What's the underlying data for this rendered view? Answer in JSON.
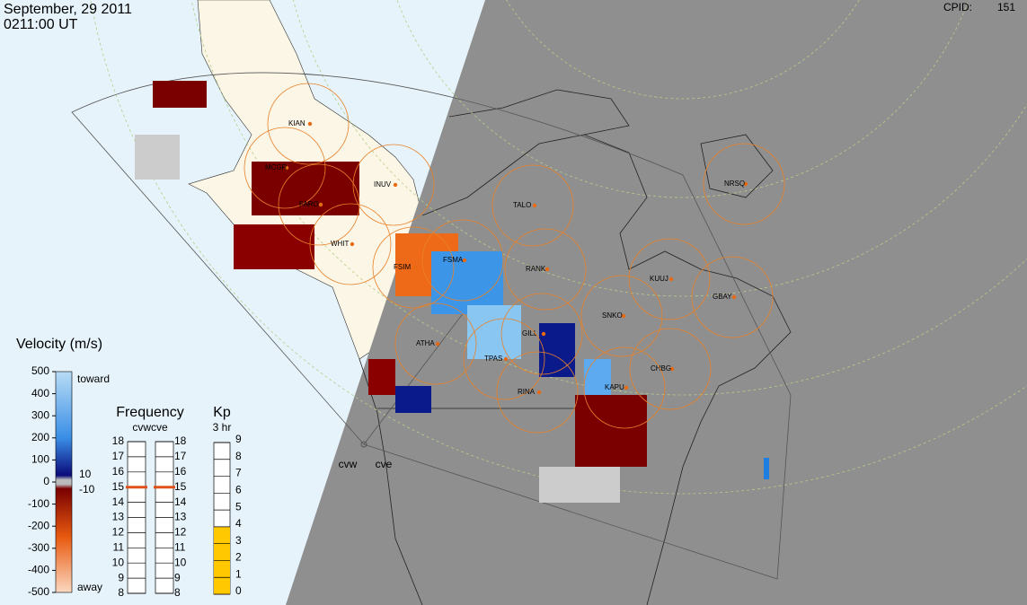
{
  "header": {
    "date": "September, 29 2011",
    "time": "0211:00 UT",
    "cpid_label": "CPID:",
    "cpid": "151"
  },
  "stations": [
    "KIAN",
    "MCGR",
    "INUV",
    "FARO",
    "WHIT",
    "FSIM",
    "FSMA",
    "RANK",
    "TALO",
    "NRSQ",
    "KUUJ",
    "GBAY",
    "SNKO",
    "GILL",
    "ATHA",
    "TPAS",
    "CHBG",
    "KAPU",
    "RINA"
  ],
  "radars": [
    "cvw",
    "cve"
  ],
  "velocity": {
    "title": "Velocity (m/s)",
    "ticks": [
      500,
      400,
      300,
      200,
      100,
      0,
      -100,
      -200,
      -300,
      -400,
      -500
    ],
    "toward": "toward",
    "away": "away",
    "ground_labels": [
      "10",
      "-10"
    ]
  },
  "frequency": {
    "title": "Frequency",
    "subtitle": "cvwcve",
    "ticks": [
      18,
      17,
      16,
      15,
      14,
      13,
      12,
      11,
      10,
      9,
      8
    ],
    "cvw": 15,
    "cve": 15
  },
  "kp": {
    "title": "Kp",
    "subtitle": "3 hr",
    "ticks": [
      9,
      8,
      7,
      6,
      5,
      4,
      3,
      2,
      1,
      0
    ],
    "value": 4
  }
}
